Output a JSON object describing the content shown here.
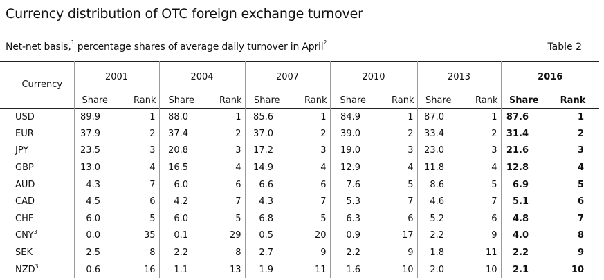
{
  "title": "Currency distribution of OTC foreign exchange turnover",
  "subtitle": {
    "part1": "Net-net basis,",
    "sup1": "1",
    "part2": " percentage shares of average daily turnover in April",
    "sup2": "2"
  },
  "table_label": "Table 2",
  "header": {
    "currency": "Currency",
    "years": [
      "2001",
      "2004",
      "2007",
      "2010",
      "2013",
      "2016"
    ],
    "share": "Share",
    "rank": "Rank"
  },
  "rows": [
    {
      "currency": "USD",
      "sup": "",
      "values": [
        [
          "89.9",
          "1"
        ],
        [
          "88.0",
          "1"
        ],
        [
          "85.6",
          "1"
        ],
        [
          "84.9",
          "1"
        ],
        [
          "87.0",
          "1"
        ],
        [
          "87.6",
          "1"
        ]
      ]
    },
    {
      "currency": "EUR",
      "sup": "",
      "values": [
        [
          "37.9",
          "2"
        ],
        [
          "37.4",
          "2"
        ],
        [
          "37.0",
          "2"
        ],
        [
          "39.0",
          "2"
        ],
        [
          "33.4",
          "2"
        ],
        [
          "31.4",
          "2"
        ]
      ]
    },
    {
      "currency": "JPY",
      "sup": "",
      "values": [
        [
          "23.5",
          "3"
        ],
        [
          "20.8",
          "3"
        ],
        [
          "17.2",
          "3"
        ],
        [
          "19.0",
          "3"
        ],
        [
          "23.0",
          "3"
        ],
        [
          "21.6",
          "3"
        ]
      ]
    },
    {
      "currency": "GBP",
      "sup": "",
      "values": [
        [
          "13.0",
          "4"
        ],
        [
          "16.5",
          "4"
        ],
        [
          "14.9",
          "4"
        ],
        [
          "12.9",
          "4"
        ],
        [
          "11.8",
          "4"
        ],
        [
          "12.8",
          "4"
        ]
      ]
    },
    {
      "currency": "AUD",
      "sup": "",
      "values": [
        [
          "4.3",
          "7"
        ],
        [
          "6.0",
          "6"
        ],
        [
          "6.6",
          "6"
        ],
        [
          "7.6",
          "5"
        ],
        [
          "8.6",
          "5"
        ],
        [
          "6.9",
          "5"
        ]
      ]
    },
    {
      "currency": "CAD",
      "sup": "",
      "values": [
        [
          "4.5",
          "6"
        ],
        [
          "4.2",
          "7"
        ],
        [
          "4.3",
          "7"
        ],
        [
          "5.3",
          "7"
        ],
        [
          "4.6",
          "7"
        ],
        [
          "5.1",
          "6"
        ]
      ]
    },
    {
      "currency": "CHF",
      "sup": "",
      "values": [
        [
          "6.0",
          "5"
        ],
        [
          "6.0",
          "5"
        ],
        [
          "6.8",
          "5"
        ],
        [
          "6.3",
          "6"
        ],
        [
          "5.2",
          "6"
        ],
        [
          "4.8",
          "7"
        ]
      ]
    },
    {
      "currency": "CNY",
      "sup": "3",
      "values": [
        [
          "0.0",
          "35"
        ],
        [
          "0.1",
          "29"
        ],
        [
          "0.5",
          "20"
        ],
        [
          "0.9",
          "17"
        ],
        [
          "2.2",
          "9"
        ],
        [
          "4.0",
          "8"
        ]
      ]
    },
    {
      "currency": "SEK",
      "sup": "",
      "values": [
        [
          "2.5",
          "8"
        ],
        [
          "2.2",
          "8"
        ],
        [
          "2.7",
          "9"
        ],
        [
          "2.2",
          "9"
        ],
        [
          "1.8",
          "11"
        ],
        [
          "2.2",
          "9"
        ]
      ]
    },
    {
      "currency": "NZD",
      "sup": "3",
      "values": [
        [
          "0.6",
          "16"
        ],
        [
          "1.1",
          "13"
        ],
        [
          "1.9",
          "11"
        ],
        [
          "1.6",
          "10"
        ],
        [
          "2.0",
          "10"
        ],
        [
          "2.1",
          "10"
        ]
      ]
    }
  ]
}
